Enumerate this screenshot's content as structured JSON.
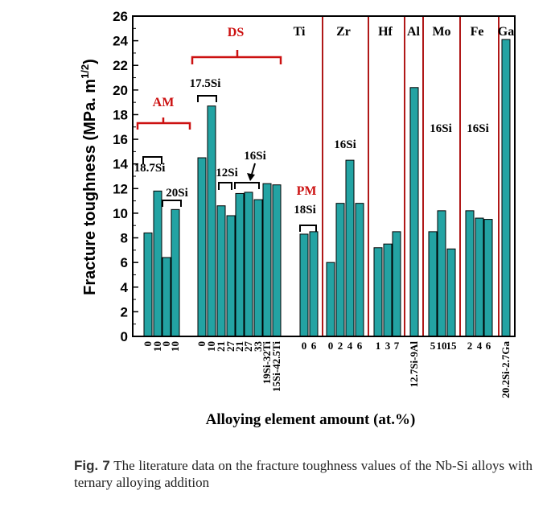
{
  "chart_data": {
    "type": "bar",
    "ylabel": "Fracture toughness (MPa. m",
    "ylabel_sup": "1/2",
    "ylabel_close": ")",
    "xlabel": "Alloying element amount (at.%)",
    "ylim": [
      0,
      26
    ],
    "yticks": [
      "0",
      "2",
      "4",
      "6",
      "8",
      "10",
      "12",
      "14",
      "16",
      "18",
      "20",
      "22",
      "24",
      "26"
    ],
    "bar_color": "#23a3a3",
    "annotation_color": "#cc1111",
    "groups": [
      {
        "label": "",
        "bars": [
          {
            "tick": "0",
            "value": 8.4
          },
          {
            "tick": "10",
            "value": 11.8
          },
          {
            "tick": "0",
            "value": 6.4
          },
          {
            "tick": "10",
            "value": 10.3
          }
        ]
      },
      {
        "label": "",
        "bars": [
          {
            "tick": "0",
            "value": 14.5
          },
          {
            "tick": "10",
            "value": 18.7
          },
          {
            "tick": "21",
            "value": 10.6
          },
          {
            "tick": "27",
            "value": 9.8
          },
          {
            "tick": "21",
            "value": 11.6
          },
          {
            "tick": "27",
            "value": 11.7
          },
          {
            "tick": "33",
            "value": 11.1
          },
          {
            "tick": "19Si-32Ti",
            "value": 12.4
          },
          {
            "tick": "15Si-42.5Ti",
            "value": 12.3
          }
        ]
      },
      {
        "label": "Ti",
        "bars": [
          {
            "tick": "0",
            "value": 8.3
          },
          {
            "tick": "6",
            "value": 8.5
          }
        ]
      },
      {
        "label": "Zr",
        "bars": [
          {
            "tick": "0",
            "value": 6.0
          },
          {
            "tick": "2",
            "value": 10.8
          },
          {
            "tick": "4",
            "value": 14.3
          },
          {
            "tick": "6",
            "value": 10.8
          }
        ]
      },
      {
        "label": "Hf",
        "bars": [
          {
            "tick": "1",
            "value": 7.2
          },
          {
            "tick": "3",
            "value": 7.5
          },
          {
            "tick": "7",
            "value": 8.5
          }
        ]
      },
      {
        "label": "Al",
        "bars": [
          {
            "tick": "12.7Si-9Al",
            "value": 20.2
          }
        ]
      },
      {
        "label": "Mo",
        "bars": [
          {
            "tick": "5",
            "value": 8.5
          },
          {
            "tick": "10",
            "value": 10.2
          },
          {
            "tick": "15",
            "value": 7.1
          }
        ]
      },
      {
        "label": "Fe",
        "bars": [
          {
            "tick": "2",
            "value": 10.2
          },
          {
            "tick": "4",
            "value": 9.6
          },
          {
            "tick": "6",
            "value": 9.5
          }
        ]
      },
      {
        "label": "Ga",
        "bars": [
          {
            "tick": "20.2Si-2.7Ga",
            "value": 24.1
          }
        ]
      }
    ],
    "annotations": {
      "am": "AM",
      "ds": "DS",
      "pm": "PM",
      "si_18_7": "18.7Si",
      "si_20": "20Si",
      "si_17_5": "17.5Si",
      "si_12": "12Si",
      "si_16_ds": "16Si",
      "si_18": "18Si",
      "si_16_zr": "16Si",
      "si_16_mo": "16Si",
      "si_16_fe": "16Si"
    }
  },
  "caption": {
    "fig_label": "Fig. 7",
    "text": " The literature data on the fracture toughness values of the Nb-Si alloys with ternary alloying addition"
  }
}
